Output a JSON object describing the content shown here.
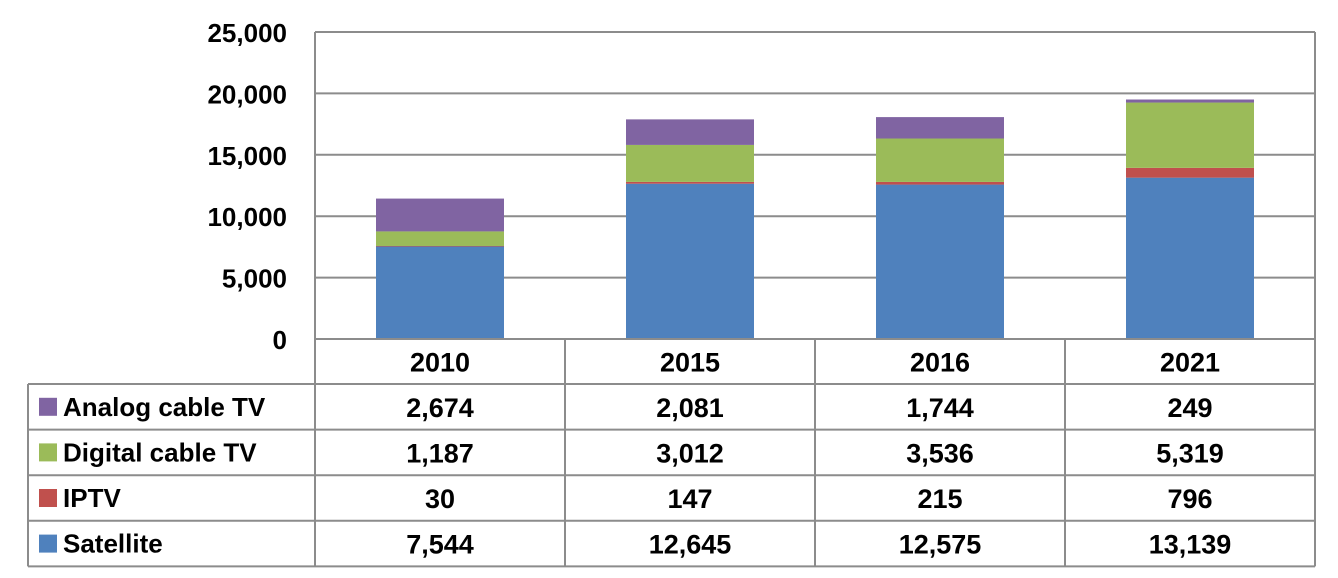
{
  "chart_data": {
    "type": "bar",
    "stacked": true,
    "categories": [
      "2010",
      "2015",
      "2016",
      "2021"
    ],
    "series": [
      {
        "name": "Satellite",
        "color": "#4F81BD",
        "values": [
          7544,
          12645,
          12575,
          13139
        ],
        "labels": [
          "7,544",
          "12,645",
          "12,575",
          "13,139"
        ]
      },
      {
        "name": "IPTV",
        "color": "#C0504D",
        "values": [
          30,
          147,
          215,
          796
        ],
        "labels": [
          "30",
          "147",
          "215",
          "796"
        ]
      },
      {
        "name": "Digital cable TV",
        "color": "#9BBB59",
        "values": [
          1187,
          3012,
          3536,
          5319
        ],
        "labels": [
          "1,187",
          "3,012",
          "3,536",
          "5,319"
        ]
      },
      {
        "name": "Analog cable TV",
        "color": "#8064A2",
        "values": [
          2674,
          2081,
          1744,
          249
        ],
        "labels": [
          "2,674",
          "2,081",
          "1,744",
          "249"
        ]
      }
    ],
    "table_order": [
      "Analog cable TV",
      "Digital cable TV",
      "IPTV",
      "Satellite"
    ],
    "ylim": [
      0,
      25000
    ],
    "yticks": [
      0,
      5000,
      10000,
      15000,
      20000,
      25000
    ],
    "ytick_labels": [
      "0",
      "5,000",
      "10,000",
      "15,000",
      "20,000",
      "25,000"
    ],
    "grid": true,
    "legend": "data-table",
    "title": "",
    "xlabel": "",
    "ylabel": ""
  }
}
